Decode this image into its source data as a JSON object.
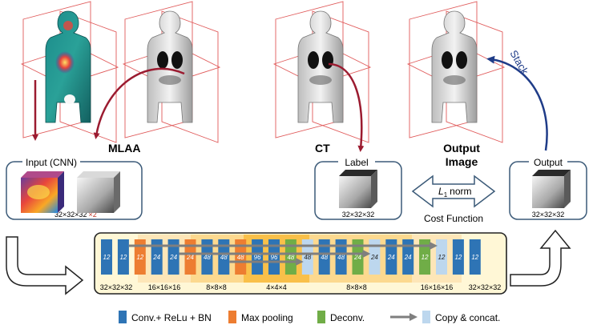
{
  "labels": {
    "mlaa": "MLAA",
    "ct": "CT",
    "output_image_line1": "Output",
    "output_image_line2": "Image",
    "stack": "Stack",
    "input_title": "Input (CNN)",
    "input_size": "32×32×32",
    "input_mult": "×2",
    "label_title": "Label",
    "label_size": "32×32×32",
    "output_title": "Output",
    "output_size": "32×32×32",
    "l1_norm_symbol": "L",
    "l1_norm_sub": "1",
    "l1_norm_word": "norm",
    "cost_function": "Cost Function"
  },
  "network": {
    "blocks": [
      {
        "type": "conv",
        "value": "12"
      },
      {
        "type": "conv",
        "value": "12"
      },
      {
        "type": "pool",
        "value": "12"
      },
      {
        "type": "conv",
        "value": "24"
      },
      {
        "type": "conv",
        "value": "24"
      },
      {
        "type": "pool",
        "value": "24"
      },
      {
        "type": "conv",
        "value": "48"
      },
      {
        "type": "conv",
        "value": "48"
      },
      {
        "type": "pool",
        "value": "48"
      },
      {
        "type": "conv",
        "value": "96"
      },
      {
        "type": "conv",
        "value": "96"
      },
      {
        "type": "deconv",
        "value": "48"
      },
      {
        "type": "copy",
        "value": "48"
      },
      {
        "type": "conv",
        "value": "48"
      },
      {
        "type": "conv",
        "value": "48"
      },
      {
        "type": "deconv",
        "value": "24"
      },
      {
        "type": "copy",
        "value": "24"
      },
      {
        "type": "conv",
        "value": "24"
      },
      {
        "type": "conv",
        "value": "24"
      },
      {
        "type": "deconv",
        "value": "12"
      },
      {
        "type": "copy",
        "value": "12"
      },
      {
        "type": "conv",
        "value": "12"
      },
      {
        "type": "conv",
        "value": "12"
      }
    ],
    "stage_sizes": [
      "32×32×32",
      "16×16×16",
      "8×8×8",
      "4×4×4",
      "8×8×8",
      "16×16×16",
      "32×32×32"
    ]
  },
  "legend": [
    {
      "key": "conv",
      "label": "Conv.+ ReLu + BN",
      "color": "#2e74b5"
    },
    {
      "key": "pool",
      "label": "Max pooling",
      "color": "#ed7d31"
    },
    {
      "key": "deconv",
      "label": "Deconv.",
      "color": "#70ad47"
    },
    {
      "key": "copy",
      "label": "Copy & concat.",
      "color": "#bdd7ee"
    }
  ],
  "colors": {
    "conv": "#2e74b5",
    "pool": "#ed7d31",
    "deconv": "#70ad47",
    "copy": "#bdd7ee",
    "red_arrow": "#9b1b30",
    "blue_arrow": "#1f3c88",
    "panel_border": "#3b5a78",
    "plane": "#e05a5a"
  }
}
